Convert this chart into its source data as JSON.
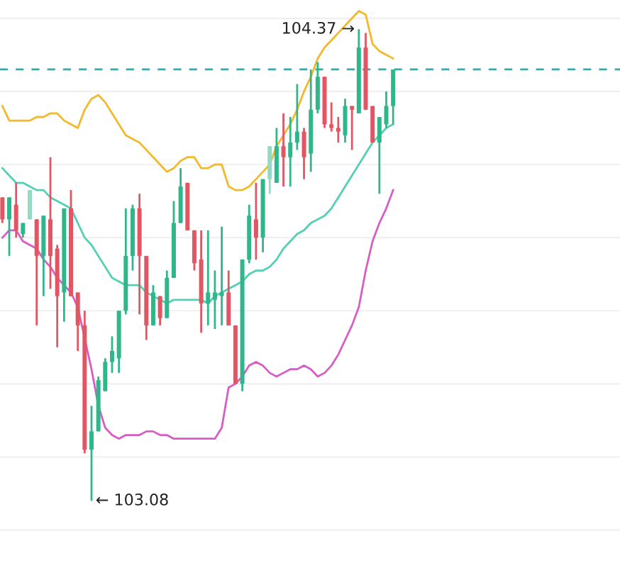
{
  "chart_data": {
    "type": "candlestick",
    "categories": [
      null,
      null,
      null,
      null,
      null,
      null,
      null,
      null,
      null,
      null,
      null,
      null,
      null,
      null,
      null,
      null,
      null,
      null,
      null,
      null,
      null,
      null,
      null,
      null,
      null,
      null,
      null,
      null,
      null,
      null,
      null,
      null,
      null,
      null,
      null,
      null,
      null,
      null,
      null,
      null,
      null,
      null,
      null,
      null,
      null,
      null,
      null,
      null,
      null,
      null,
      null,
      null,
      null,
      null,
      null,
      null,
      null,
      null,
      null,
      null,
      null,
      null,
      null,
      null,
      null,
      null,
      null,
      null,
      null,
      null,
      null,
      null,
      null,
      null,
      null,
      null,
      null,
      null,
      null,
      null,
      null,
      null,
      null,
      null,
      null,
      null,
      null,
      null,
      null,
      null,
      null
    ],
    "ohlc": [
      [
        103.91,
        103.91,
        103.84,
        103.85
      ],
      [
        103.85,
        103.91,
        103.75,
        103.91
      ],
      [
        103.89,
        103.95,
        103.8,
        103.82
      ],
      [
        103.81,
        103.84,
        103.8,
        103.84
      ],
      [
        103.85,
        103.93,
        103.85,
        103.93
      ],
      [
        103.85,
        103.85,
        103.56,
        103.75
      ],
      [
        103.75,
        103.86,
        103.64,
        103.86
      ],
      [
        103.85,
        104.02,
        103.66,
        103.75
      ],
      [
        103.77,
        103.78,
        103.5,
        103.64
      ],
      [
        103.65,
        103.88,
        103.57,
        103.88
      ],
      [
        103.88,
        103.93,
        103.64,
        103.64
      ],
      [
        103.65,
        103.65,
        103.49,
        103.56
      ],
      [
        103.56,
        103.6,
        103.21,
        103.22
      ],
      [
        103.22,
        103.34,
        103.08,
        103.27
      ],
      [
        103.27,
        103.42,
        103.27,
        103.41
      ],
      [
        103.38,
        103.47,
        103.38,
        103.46
      ],
      [
        103.46,
        103.53,
        103.43,
        103.49
      ],
      [
        103.47,
        103.6,
        103.43,
        103.6
      ],
      [
        103.6,
        103.88,
        103.59,
        103.75
      ],
      [
        103.75,
        103.89,
        103.71,
        103.88
      ],
      [
        103.88,
        103.92,
        103.59,
        103.75
      ],
      [
        103.75,
        103.75,
        103.52,
        103.56
      ],
      [
        103.56,
        103.67,
        103.56,
        103.65
      ],
      [
        103.64,
        103.64,
        103.56,
        103.58
      ],
      [
        103.58,
        103.71,
        103.58,
        103.69
      ],
      [
        103.69,
        103.9,
        103.69,
        103.84
      ],
      [
        103.84,
        103.99,
        103.84,
        103.94
      ],
      [
        103.95,
        103.95,
        103.82,
        103.82
      ],
      [
        103.82,
        103.82,
        103.71,
        103.73
      ],
      [
        103.74,
        103.82,
        103.54,
        103.62
      ],
      [
        103.62,
        103.82,
        103.56,
        103.65
      ],
      [
        103.63,
        103.71,
        103.55,
        103.65
      ],
      [
        103.64,
        103.83,
        103.56,
        103.65
      ],
      [
        103.65,
        103.71,
        103.56,
        103.56
      ],
      [
        103.56,
        103.56,
        103.4,
        103.4
      ],
      [
        103.4,
        103.74,
        103.38,
        103.74
      ],
      [
        103.74,
        103.89,
        103.73,
        103.86
      ],
      [
        103.85,
        103.95,
        103.74,
        103.8
      ],
      [
        103.8,
        103.96,
        103.76,
        103.96
      ],
      [
        103.96,
        104.05,
        103.92,
        104.05
      ],
      [
        103.95,
        104.1,
        103.95,
        104.05
      ],
      [
        104.05,
        104.14,
        103.94,
        104.02
      ],
      [
        104.02,
        104.13,
        103.94,
        104.06
      ],
      [
        104.06,
        104.22,
        104.04,
        104.09
      ],
      [
        104.09,
        104.1,
        103.96,
        104.02
      ],
      [
        104.03,
        104.26,
        103.98,
        104.15
      ],
      [
        104.15,
        104.28,
        104.14,
        104.24
      ],
      [
        104.24,
        104.24,
        104.1,
        104.11
      ],
      [
        104.11,
        104.17,
        104.09,
        104.1
      ],
      [
        104.1,
        104.13,
        104.06,
        104.09
      ],
      [
        104.08,
        104.18,
        104.06,
        104.16
      ],
      [
        104.16,
        104.16,
        104.04,
        104.15
      ],
      [
        104.14,
        104.37,
        104.14,
        104.32
      ],
      [
        104.32,
        104.36,
        104.15,
        104.15
      ],
      [
        104.16,
        104.16,
        104.06,
        104.06
      ],
      [
        104.06,
        104.13,
        103.92,
        104.13
      ],
      [
        104.11,
        104.2,
        104.1,
        104.16
      ],
      [
        104.16,
        104.26,
        104.11,
        104.26
      ],
      null,
      null,
      null,
      null,
      null,
      null,
      null,
      null,
      null,
      null,
      null,
      null,
      null,
      null,
      null,
      null,
      null,
      null,
      null,
      null,
      null,
      null,
      null,
      null,
      null,
      null,
      null,
      null,
      null,
      null,
      null,
      null,
      null
    ],
    "colors": [
      "#e25563",
      "#2fb68a",
      "#e25563",
      "#2fb68a",
      "#94d9c3",
      "#e25563",
      "#2fb68a",
      "#e25563",
      "#e25563",
      "#2fb68a",
      "#e25563",
      "#e25563",
      "#e25563",
      "#2fb68a",
      "#2fb68a",
      "#2fb68a",
      "#2fb68a",
      "#2fb68a",
      "#2fb68a",
      "#2fb68a",
      "#e25563",
      "#e25563",
      "#2fb68a",
      "#e25563",
      "#2fb68a",
      "#2fb68a",
      "#2fb68a",
      "#e25563",
      "#e25563",
      "#e25563",
      "#2fb68a",
      "#2fb68a",
      "#2fb68a",
      "#e25563",
      "#e25563",
      "#2fb68a",
      "#2fb68a",
      "#e25563",
      "#2fb68a",
      "#94d9c3",
      "#2fb68a",
      "#e25563",
      "#2fb68a",
      "#2fb68a",
      "#e25563",
      "#2fb68a",
      "#2fb68a",
      "#e25563",
      "#e25563",
      "#e25563",
      "#2fb68a",
      "#e25563",
      "#2fb68a",
      "#e25563",
      "#e25563",
      "#2fb68a",
      "#2fb68a",
      "#2fb68a",
      null,
      null,
      null,
      null,
      null,
      null,
      null,
      null,
      null,
      null,
      null,
      null,
      null,
      null,
      null,
      null,
      null,
      null,
      null,
      null,
      null,
      null,
      null,
      null,
      null,
      null,
      null,
      null,
      null,
      null,
      null,
      null,
      null
    ],
    "series": [
      {
        "type": "line",
        "color": "#f3b82c",
        "values": [
          104.16,
          104.12,
          104.12,
          104.12,
          104.12,
          104.13,
          104.13,
          104.14,
          104.14,
          104.12,
          104.11,
          104.1,
          104.15,
          104.18,
          104.19,
          104.17,
          104.14,
          104.11,
          104.08,
          104.07,
          104.06,
          104.04,
          104.02,
          104.0,
          103.98,
          103.99,
          104.01,
          104.02,
          104.02,
          103.99,
          103.99,
          104.0,
          104.0,
          103.94,
          103.93,
          103.93,
          103.94,
          103.96,
          103.98,
          104.0,
          104.05,
          104.08,
          104.11,
          104.15,
          104.2,
          104.24,
          104.29,
          104.32,
          104.34,
          104.36,
          104.38,
          104.4,
          104.42,
          104.41,
          104.33,
          104.31,
          104.3,
          104.29,
          null,
          null,
          null,
          null,
          null,
          null,
          null,
          null,
          null,
          null,
          null,
          null,
          null,
          null,
          null,
          null,
          null,
          null,
          null,
          null,
          null,
          null,
          null,
          null,
          null,
          null,
          null,
          null,
          null,
          null,
          null,
          null,
          null
        ]
      },
      {
        "type": "line",
        "color": "#52d0b4",
        "values": [
          103.99,
          103.97,
          103.95,
          103.95,
          103.94,
          103.93,
          103.93,
          103.91,
          103.9,
          103.89,
          103.88,
          103.84,
          103.8,
          103.78,
          103.75,
          103.72,
          103.69,
          103.68,
          103.67,
          103.67,
          103.67,
          103.65,
          103.64,
          103.63,
          103.62,
          103.63,
          103.63,
          103.63,
          103.63,
          103.63,
          103.62,
          103.64,
          103.65,
          103.66,
          103.67,
          103.68,
          103.7,
          103.71,
          103.71,
          103.72,
          103.74,
          103.77,
          103.79,
          103.81,
          103.82,
          103.84,
          103.85,
          103.86,
          103.88,
          103.91,
          103.94,
          103.97,
          104.0,
          104.03,
          104.06,
          104.08,
          104.1,
          104.11,
          null,
          null,
          null,
          null,
          null,
          null,
          null,
          null,
          null,
          null,
          null,
          null,
          null,
          null,
          null,
          null,
          null,
          null,
          null,
          null,
          null,
          null,
          null,
          null,
          null,
          null,
          null,
          null,
          null,
          null,
          null,
          null,
          null
        ]
      },
      {
        "type": "line",
        "color": "#d95cc6",
        "values": [
          103.8,
          103.82,
          103.82,
          103.79,
          103.78,
          103.77,
          103.74,
          103.72,
          103.69,
          103.67,
          103.65,
          103.61,
          null,
          103.44,
          103.34,
          103.28,
          103.26,
          103.25,
          103.26,
          103.26,
          103.26,
          103.27,
          103.27,
          103.26,
          103.26,
          103.25,
          103.25,
          103.25,
          103.25,
          103.25,
          103.25,
          103.25,
          103.28,
          103.39,
          103.4,
          103.42,
          103.45,
          103.46,
          103.45,
          103.43,
          103.42,
          103.43,
          103.44,
          103.44,
          103.45,
          103.44,
          103.42,
          103.43,
          103.45,
          103.48,
          103.52,
          103.56,
          103.61,
          103.71,
          103.79,
          103.84,
          103.88,
          103.93,
          null,
          null,
          null,
          null,
          null,
          null,
          null,
          null,
          null,
          null,
          null,
          null,
          null,
          null,
          null,
          null,
          null,
          null,
          null,
          null,
          null,
          null,
          null,
          null,
          null,
          null,
          null,
          null,
          null,
          null,
          null,
          null,
          null
        ]
      }
    ],
    "ref_lines": [
      {
        "axis": "y",
        "value": 104.26,
        "color": "#3aa8a8",
        "line_style": "dashed"
      }
    ],
    "annotations": [
      "← 103.08",
      "104.37 →"
    ],
    "ylim": [
      102.91,
      104.45
    ],
    "yticks": [
      {
        "value": 104.4,
        "label": null
      },
      {
        "value": 104.2,
        "label": null
      },
      {
        "value": 104.0,
        "label": null
      },
      {
        "value": 103.8,
        "label": null
      },
      {
        "value": 103.6,
        "label": null
      },
      {
        "value": 103.4,
        "label": null
      },
      {
        "value": 103.2,
        "label": null
      },
      {
        "value": 103.0,
        "label": null
      }
    ],
    "grid": "y"
  }
}
